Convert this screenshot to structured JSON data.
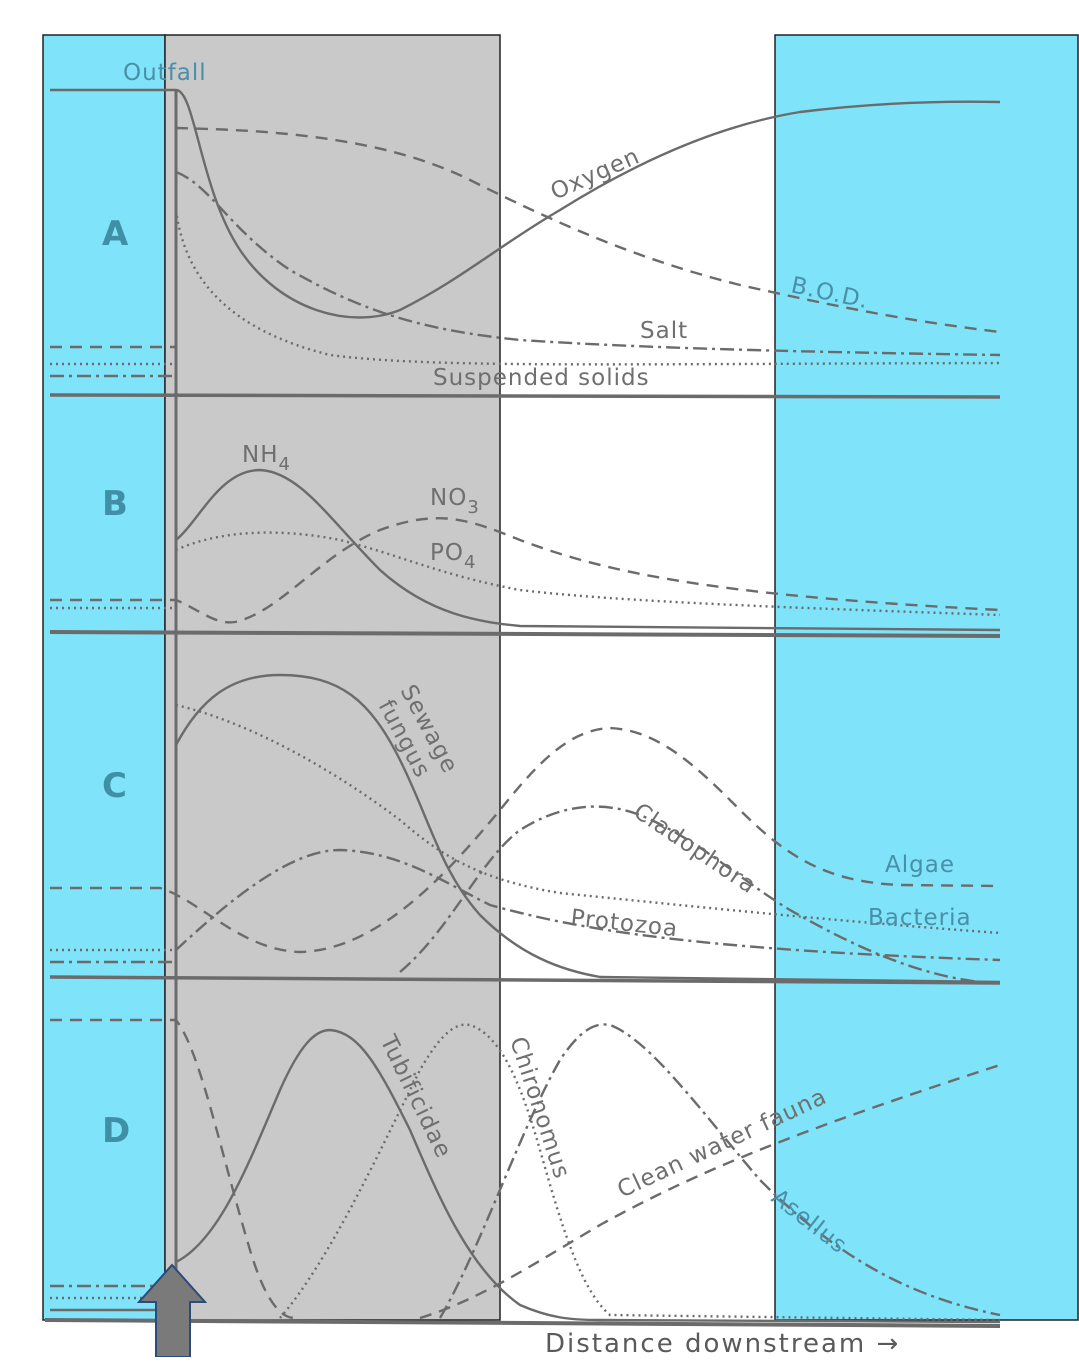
{
  "title": "",
  "outfall_label": "Outfall",
  "x_axis_label": "Distance  downstream  →",
  "colors": {
    "highlight_blue": "#7fe3fa",
    "highlight_gray": "#c9c9c9",
    "curve": "#6b6b6b",
    "panel_letter": "#3f8fa6",
    "arrow": "#7a7a7a"
  },
  "panels": [
    {
      "letter": "A",
      "curves": [
        {
          "name": "Oxygen",
          "style": "solid",
          "label": "Oxygen"
        },
        {
          "name": "B.O.D.",
          "style": "dashed",
          "label": "B.O.D."
        },
        {
          "name": "Salt",
          "style": "dashdot",
          "label": "Salt"
        },
        {
          "name": "Suspended solids",
          "style": "dotted",
          "label": "Suspended  solids"
        }
      ]
    },
    {
      "letter": "B",
      "curves": [
        {
          "name": "NH4",
          "style": "solid",
          "label": "NH4"
        },
        {
          "name": "NO3",
          "style": "dashed",
          "label": "NO3"
        },
        {
          "name": "PO4",
          "style": "dotted",
          "label": "PO4"
        }
      ]
    },
    {
      "letter": "C",
      "curves": [
        {
          "name": "Sewage fungus",
          "style": "solid",
          "label_line1": "Sewage",
          "label_line2": "fungus"
        },
        {
          "name": "Algae",
          "style": "dashed",
          "label": "Algae"
        },
        {
          "name": "Bacteria",
          "style": "dotted",
          "label": "Bacteria"
        },
        {
          "name": "Cladophora",
          "style": "dashdot",
          "label": "Cladophora"
        },
        {
          "name": "Protozoa",
          "style": "dashdot",
          "label": "Protozoa"
        }
      ]
    },
    {
      "letter": "D",
      "curves": [
        {
          "name": "Tubificidae",
          "style": "solid",
          "label": "Tubificidae"
        },
        {
          "name": "Chironomus",
          "style": "dotted",
          "label": "Chironomus"
        },
        {
          "name": "Clean water fauna",
          "style": "dashed",
          "label": "Clean  water  fauna"
        },
        {
          "name": "Asellus",
          "style": "dashdot",
          "label": "Asellus"
        }
      ]
    }
  ],
  "highlight_regions": [
    {
      "name": "upstream",
      "color": "blue"
    },
    {
      "name": "near-outfall zone",
      "color": "gray"
    },
    {
      "name": "far-downstream recovery",
      "color": "blue"
    }
  ],
  "indicator": {
    "type": "up-arrow",
    "points_to": "Outfall"
  }
}
